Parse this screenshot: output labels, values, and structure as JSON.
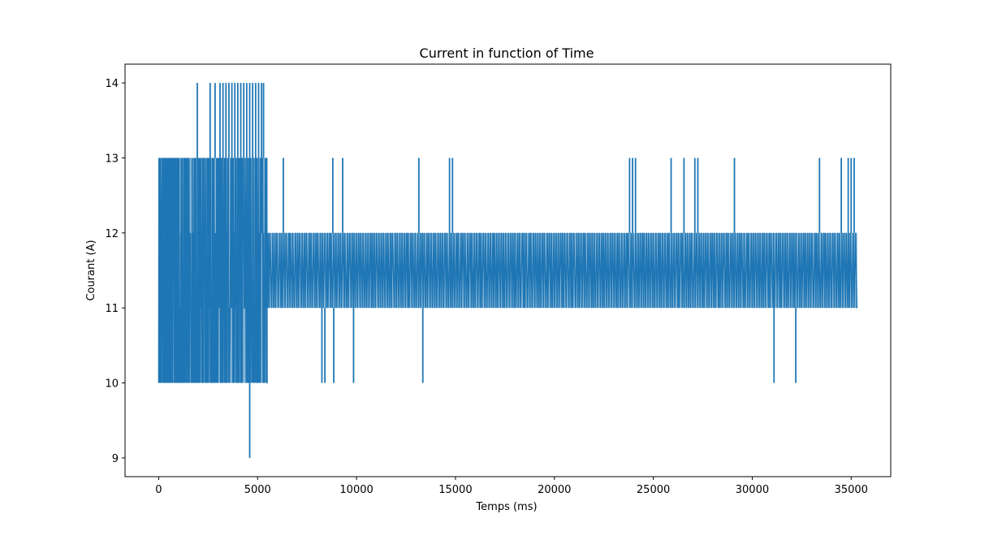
{
  "chart_data": {
    "type": "line",
    "title": "Current in function of Time",
    "xlabel": "Temps (ms)",
    "ylabel": "Courant (A)",
    "xlim": [
      -1700,
      37000
    ],
    "ylim": [
      8.75,
      14.25
    ],
    "xticks": [
      0,
      5000,
      10000,
      15000,
      20000,
      25000,
      30000,
      35000
    ],
    "yticks": [
      9,
      10,
      11,
      12,
      13,
      14
    ],
    "grid": false,
    "legend": "none",
    "series": [
      {
        "color": "#1f77b4",
        "regions": [
          {
            "x_start": 0,
            "x_end": 5500,
            "y_low": 10,
            "y_high": 13,
            "switches": 260
          },
          {
            "x_start": 5500,
            "x_end": 35300,
            "y_low": 11,
            "y_high": 12,
            "switches": 520
          }
        ],
        "spikes": [
          {
            "x": 1950,
            "y": 14
          },
          {
            "x": 2600,
            "y": 14
          },
          {
            "x": 2850,
            "y": 14
          },
          {
            "x": 3100,
            "y": 14
          },
          {
            "x": 3250,
            "y": 14
          },
          {
            "x": 3400,
            "y": 14
          },
          {
            "x": 3550,
            "y": 14
          },
          {
            "x": 3700,
            "y": 14
          },
          {
            "x": 3850,
            "y": 14
          },
          {
            "x": 4000,
            "y": 14
          },
          {
            "x": 4150,
            "y": 14
          },
          {
            "x": 4300,
            "y": 14
          },
          {
            "x": 4450,
            "y": 14
          },
          {
            "x": 4600,
            "y": 14
          },
          {
            "x": 4750,
            "y": 14
          },
          {
            "x": 4900,
            "y": 14
          },
          {
            "x": 5050,
            "y": 14
          },
          {
            "x": 5200,
            "y": 14
          },
          {
            "x": 5300,
            "y": 14
          },
          {
            "x": 4600,
            "y": 9
          },
          {
            "x": 50,
            "y": 13
          },
          {
            "x": 300,
            "y": 13
          },
          {
            "x": 700,
            "y": 13
          },
          {
            "x": 6300,
            "y": 13
          },
          {
            "x": 8800,
            "y": 13
          },
          {
            "x": 9300,
            "y": 13
          },
          {
            "x": 13150,
            "y": 13
          },
          {
            "x": 14700,
            "y": 13
          },
          {
            "x": 14850,
            "y": 13
          },
          {
            "x": 23800,
            "y": 13
          },
          {
            "x": 23950,
            "y": 13
          },
          {
            "x": 24100,
            "y": 13
          },
          {
            "x": 25900,
            "y": 13
          },
          {
            "x": 26550,
            "y": 13
          },
          {
            "x": 27100,
            "y": 13
          },
          {
            "x": 27250,
            "y": 13
          },
          {
            "x": 29100,
            "y": 13
          },
          {
            "x": 33400,
            "y": 13
          },
          {
            "x": 34500,
            "y": 13
          },
          {
            "x": 34850,
            "y": 13
          },
          {
            "x": 35000,
            "y": 13
          },
          {
            "x": 35150,
            "y": 13
          },
          {
            "x": 1000,
            "y": 10
          },
          {
            "x": 1150,
            "y": 10
          },
          {
            "x": 1450,
            "y": 10
          },
          {
            "x": 1700,
            "y": 10
          },
          {
            "x": 8250,
            "y": 10
          },
          {
            "x": 8400,
            "y": 10
          },
          {
            "x": 8850,
            "y": 10
          },
          {
            "x": 9850,
            "y": 10
          },
          {
            "x": 13350,
            "y": 10
          },
          {
            "x": 31100,
            "y": 10
          },
          {
            "x": 32200,
            "y": 10
          }
        ]
      }
    ]
  }
}
